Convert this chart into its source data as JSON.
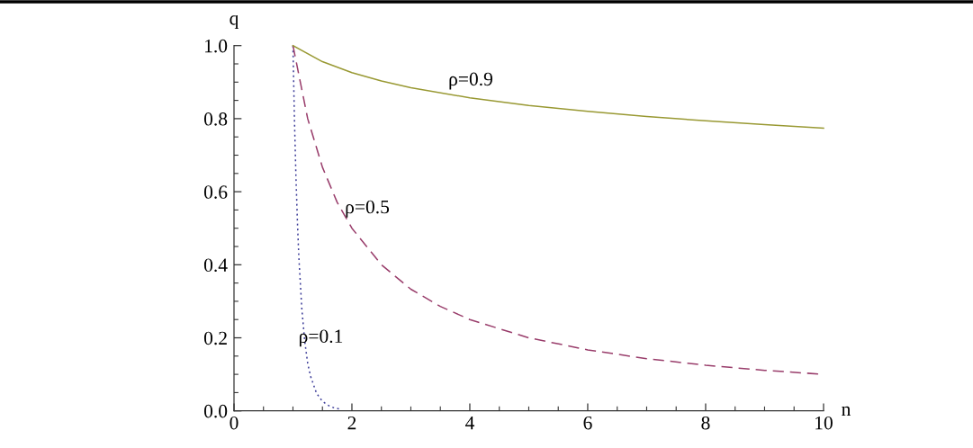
{
  "chart_data": {
    "type": "line",
    "xlabel": "n",
    "ylabel": "q",
    "xlim": [
      0,
      10
    ],
    "ylim": [
      0,
      1
    ],
    "xticks": [
      0,
      {
        "value": 0.5,
        "label": null
      },
      {
        "value": 1,
        "label": null
      },
      {
        "value": 1.5,
        "label": null
      },
      2,
      {
        "value": 2.5,
        "label": null
      },
      {
        "value": 3,
        "label": null
      },
      {
        "value": 3.5,
        "label": null
      },
      4,
      {
        "value": 4.5,
        "label": null
      },
      {
        "value": 5,
        "label": null
      },
      {
        "value": 5.5,
        "label": null
      },
      6,
      {
        "value": 6.5,
        "label": null
      },
      {
        "value": 7,
        "label": null
      },
      {
        "value": 7.5,
        "label": null
      },
      8,
      {
        "value": 8.5,
        "label": null
      },
      {
        "value": 9,
        "label": null
      },
      {
        "value": 9.5,
        "label": null
      },
      10
    ],
    "yticks": [
      {
        "value": 0,
        "label": "0.0"
      },
      {
        "value": 0.05,
        "label": null
      },
      {
        "value": 0.1,
        "label": null
      },
      {
        "value": 0.15,
        "label": null
      },
      0.2,
      {
        "value": 0.25,
        "label": null
      },
      {
        "value": 0.3,
        "label": null
      },
      {
        "value": 0.35,
        "label": null
      },
      0.4,
      {
        "value": 0.45,
        "label": null
      },
      {
        "value": 0.5,
        "label": null
      },
      {
        "value": 0.55,
        "label": null
      },
      0.6,
      {
        "value": 0.65,
        "label": null
      },
      {
        "value": 0.7,
        "label": null
      },
      {
        "value": 0.75,
        "label": null
      },
      0.8,
      {
        "value": 0.85,
        "label": null
      },
      {
        "value": 0.9,
        "label": null
      },
      {
        "value": 0.95,
        "label": null
      },
      {
        "value": 1,
        "label": "1.0"
      }
    ],
    "series": [
      {
        "color": "#3d3d99",
        "line_style": "dotted",
        "x": [
          1,
          1.025,
          1.05,
          1.075,
          1.1,
          1.15,
          1.2,
          1.25,
          1.3,
          1.4,
          1.5,
          1.6,
          1.7,
          1.8
        ],
        "values": [
          1.0,
          0.8,
          0.645,
          0.52,
          0.42,
          0.28,
          0.19,
          0.13,
          0.094,
          0.048,
          0.026,
          0.015,
          0.008,
          0.005
        ]
      },
      {
        "color": "#993d6b",
        "line_style": "dashed",
        "x": [
          1,
          1.25,
          1.5,
          1.75,
          2,
          2.5,
          3,
          3.5,
          4,
          5,
          6,
          7,
          8,
          9,
          10
        ],
        "values": [
          1.0,
          0.8,
          0.667,
          0.571,
          0.5,
          0.4,
          0.333,
          0.286,
          0.25,
          0.2,
          0.167,
          0.143,
          0.125,
          0.111,
          0.1
        ]
      },
      {
        "color": "#999933",
        "line_style": "solid",
        "x": [
          1,
          1.5,
          2,
          2.5,
          3,
          4,
          5,
          6,
          7,
          8,
          9,
          10
        ],
        "values": [
          1.0,
          0.956,
          0.926,
          0.903,
          0.885,
          0.857,
          0.836,
          0.82,
          0.806,
          0.794,
          0.784,
          0.774
        ]
      }
    ],
    "annotations": [
      {
        "text": "ρ=0.9",
        "x": 4,
        "y": 0.857
      },
      {
        "text": "ρ=0.5",
        "x": 1.88,
        "y": 0.534
      },
      {
        "text": "ρ=0.1",
        "x": 1.2,
        "y": 0.19
      }
    ]
  }
}
